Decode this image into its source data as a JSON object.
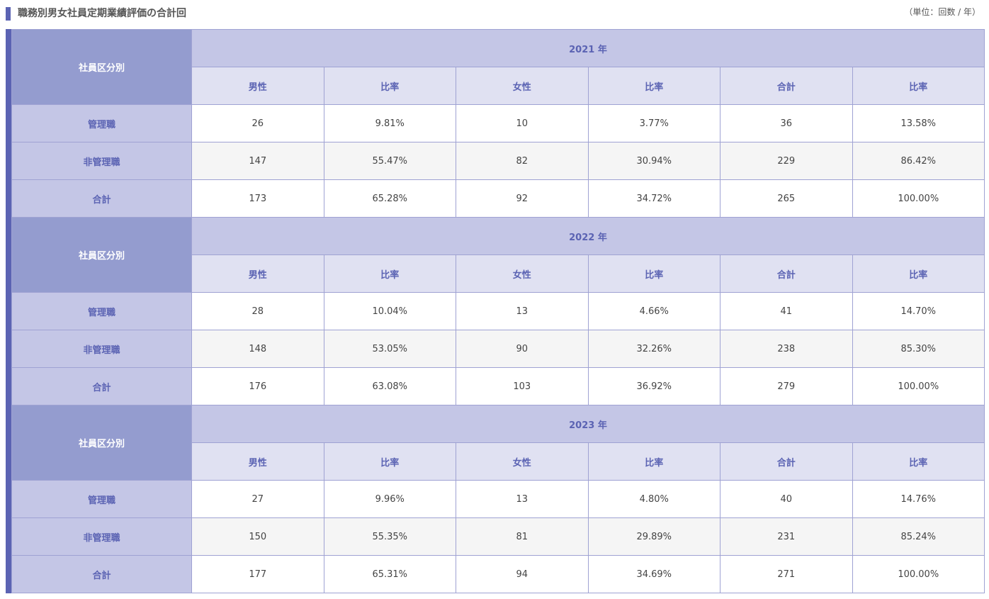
{
  "title": "職務別男女社員定期業績評価の合計回",
  "unit": "（単位：回数 / 年）",
  "label_header": "社員区分別",
  "sub_headers": [
    "男性",
    "比率",
    "女性",
    "比率",
    "合計",
    "比率"
  ],
  "years": [
    {
      "year_label": "2021 年",
      "rows": [
        {
          "label": "管理職",
          "values": [
            "26",
            "9.81%",
            "10",
            "3.77%",
            "36",
            "13.58%"
          ]
        },
        {
          "label": "非管理職",
          "values": [
            "147",
            "55.47%",
            "82",
            "30.94%",
            "229",
            "86.42%"
          ]
        },
        {
          "label": "合計",
          "values": [
            "173",
            "65.28%",
            "92",
            "34.72%",
            "265",
            "100.00%"
          ]
        }
      ]
    },
    {
      "year_label": "2022 年",
      "rows": [
        {
          "label": "管理職",
          "values": [
            "28",
            "10.04%",
            "13",
            "4.66%",
            "41",
            "14.70%"
          ]
        },
        {
          "label": "非管理職",
          "values": [
            "148",
            "53.05%",
            "90",
            "32.26%",
            "238",
            "85.30%"
          ]
        },
        {
          "label": "合計",
          "values": [
            "176",
            "63.08%",
            "103",
            "36.92%",
            "279",
            "100.00%"
          ]
        }
      ]
    },
    {
      "year_label": "2023 年",
      "rows": [
        {
          "label": "管理職",
          "values": [
            "27",
            "9.96%",
            "13",
            "4.80%",
            "40",
            "14.76%"
          ]
        },
        {
          "label": "非管理職",
          "values": [
            "150",
            "55.35%",
            "81",
            "29.89%",
            "231",
            "85.24%"
          ]
        },
        {
          "label": "合計",
          "values": [
            "177",
            "65.31%",
            "94",
            "34.69%",
            "271",
            "100.00%"
          ]
        }
      ]
    }
  ]
}
